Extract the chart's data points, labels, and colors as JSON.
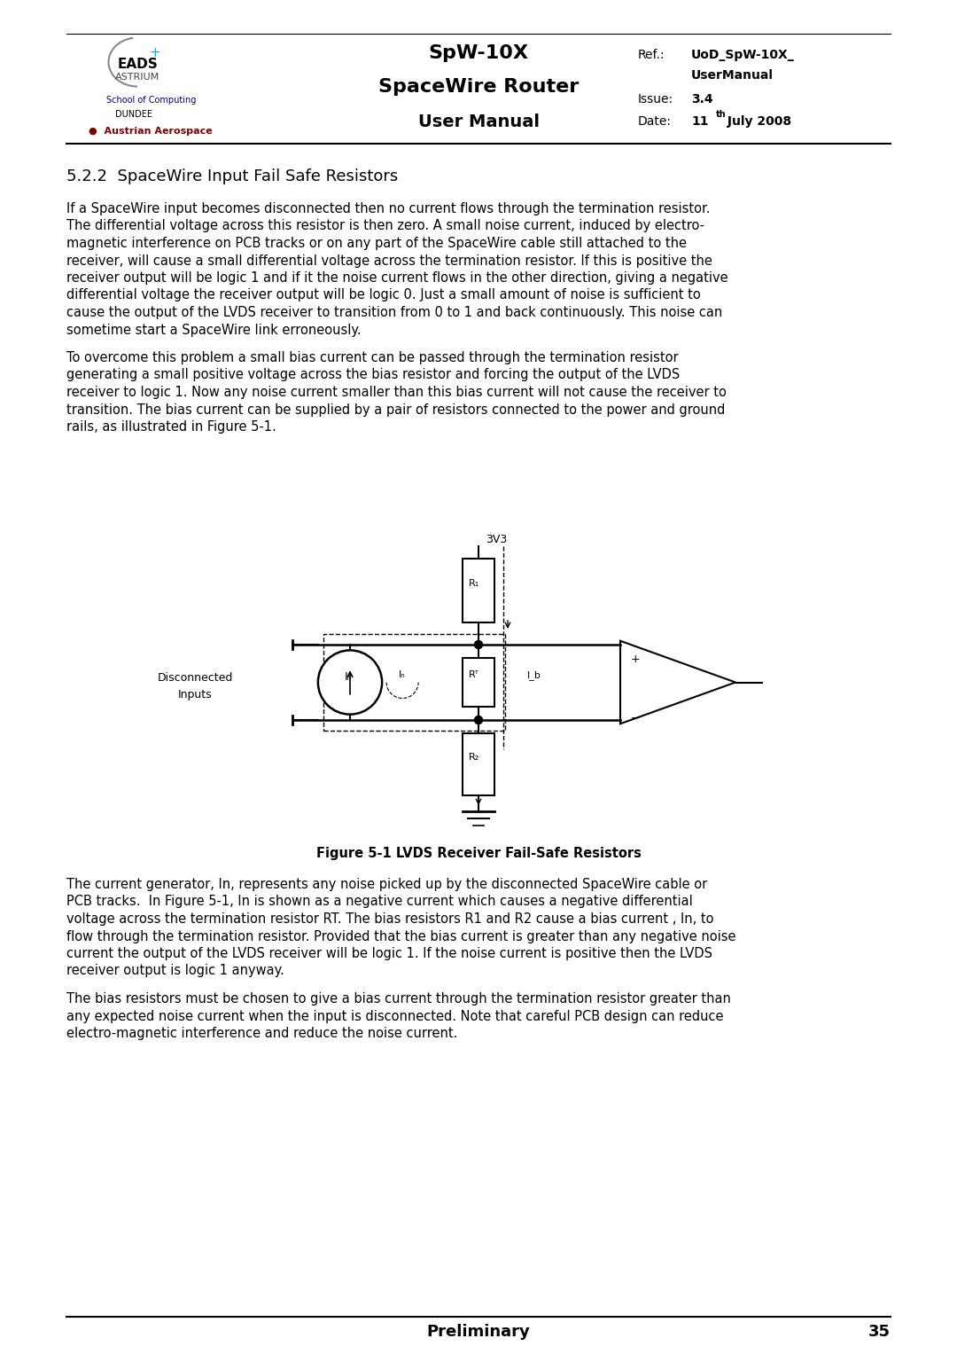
{
  "page_width": 10.8,
  "page_height": 15.27,
  "bg_color": "#ffffff",
  "header": {
    "title_line1": "SpW-10X",
    "title_line2": "SpaceWire Router",
    "title_line3": "User Manual",
    "ref_label": "Ref.:",
    "ref_value": "UoD_SpW-10X_",
    "ref_value2": "UserManual",
    "issue_label": "Issue:",
    "issue_value": "3.4",
    "date_label": "Date:",
    "date_value": "11",
    "date_super": "th",
    "date_rest": " July 2008"
  },
  "section_title": "5.2.2  SpaceWire Input Fail Safe Resistors",
  "para1_lines": [
    "If a SpaceWire input becomes disconnected then no current flows through the termination resistor.",
    "The differential voltage across this resistor is then zero. A small noise current, induced by electro-",
    "magnetic interference on PCB tracks or on any part of the SpaceWire cable still attached to the",
    "receiver, will cause a small differential voltage across the termination resistor. If this is positive the",
    "receiver output will be logic 1 and if it the noise current flows in the other direction, giving a negative",
    "differential voltage the receiver output will be logic 0. Just a small amount of noise is sufficient to",
    "cause the output of the LVDS receiver to transition from 0 to 1 and back continuously. This noise can",
    "sometime start a SpaceWire link erroneously."
  ],
  "para2_lines": [
    "To overcome this problem a small bias current can be passed through the termination resistor",
    "generating a small positive voltage across the bias resistor and forcing the output of the LVDS",
    "receiver to logic 1. Now any noise current smaller than this bias current will not cause the receiver to",
    "transition. The bias current can be supplied by a pair of resistors connected to the power and ground",
    "rails, as illustrated in Figure 5-1."
  ],
  "fig_caption": "Figure 5-1 LVDS Receiver Fail-Safe Resistors",
  "para3_lines": [
    "The current generator, In, represents any noise picked up by the disconnected SpaceWire cable or",
    "PCB tracks.  In Figure 5-1, In is shown as a negative current which causes a negative differential",
    "voltage across the termination resistor RT. The bias resistors R1 and R2 cause a bias current , In, to",
    "flow through the termination resistor. Provided that the bias current is greater than any negative noise",
    "current the output of the LVDS receiver will be logic 1. If the noise current is positive then the LVDS",
    "receiver output is logic 1 anyway."
  ],
  "para4_lines": [
    "The bias resistors must be chosen to give a bias current through the termination resistor greater than",
    "any expected noise current when the input is disconnected. Note that careful PCB design can reduce",
    "electro-magnetic interference and reduce the noise current."
  ],
  "footer_text": "Preliminary",
  "footer_page": "35"
}
